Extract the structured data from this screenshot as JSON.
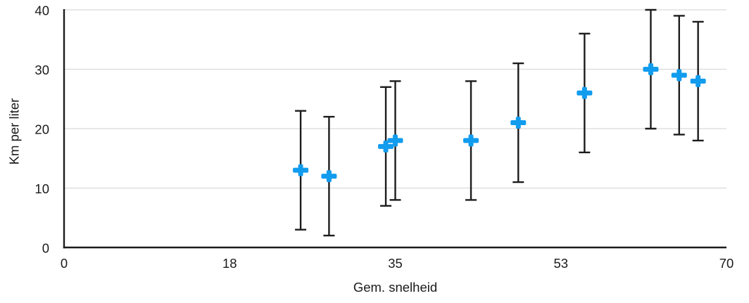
{
  "chart_data": {
    "type": "scatter",
    "title": "",
    "xlabel": "Gem. snelheid",
    "ylabel": "Km per liter",
    "xlim": [
      0,
      70
    ],
    "ylim": [
      0,
      40
    ],
    "x_ticks": [
      {
        "pos": 0,
        "label": "0"
      },
      {
        "pos": 17.5,
        "label": "18"
      },
      {
        "pos": 35,
        "label": "35"
      },
      {
        "pos": 52.5,
        "label": "53"
      },
      {
        "pos": 70,
        "label": "70"
      }
    ],
    "y_ticks": [
      {
        "value": 0,
        "label": "0"
      },
      {
        "value": 10,
        "label": "10"
      },
      {
        "value": 20,
        "label": "20"
      },
      {
        "value": 30,
        "label": "30"
      },
      {
        "value": 40,
        "label": "40"
      }
    ],
    "grid": "horizontal-gridlines-on",
    "legend": "none",
    "marker": "plus-cross",
    "error_bar_note": "symmetric ±10 on every point",
    "colors": {
      "marker": "#129CEE",
      "error_bar": "#1c1c1c",
      "axis": "#1c1c1c",
      "gridline": "#d9d9d9",
      "text": "#1a1a1a",
      "background": "#ffffff"
    },
    "points": [
      {
        "x": 25,
        "y": 13,
        "y_low": 3,
        "y_high": 23
      },
      {
        "x": 28,
        "y": 12,
        "y_low": 2,
        "y_high": 22
      },
      {
        "x": 34,
        "y": 17,
        "y_low": 7,
        "y_high": 27
      },
      {
        "x": 35,
        "y": 18,
        "y_low": 8,
        "y_high": 28
      },
      {
        "x": 43,
        "y": 18,
        "y_low": 8,
        "y_high": 28
      },
      {
        "x": 48,
        "y": 21,
        "y_low": 11,
        "y_high": 31
      },
      {
        "x": 55,
        "y": 26,
        "y_low": 16,
        "y_high": 36
      },
      {
        "x": 62,
        "y": 30,
        "y_low": 20,
        "y_high": 40
      },
      {
        "x": 65,
        "y": 29,
        "y_low": 19,
        "y_high": 39
      },
      {
        "x": 67,
        "y": 28,
        "y_low": 18,
        "y_high": 38
      }
    ]
  }
}
